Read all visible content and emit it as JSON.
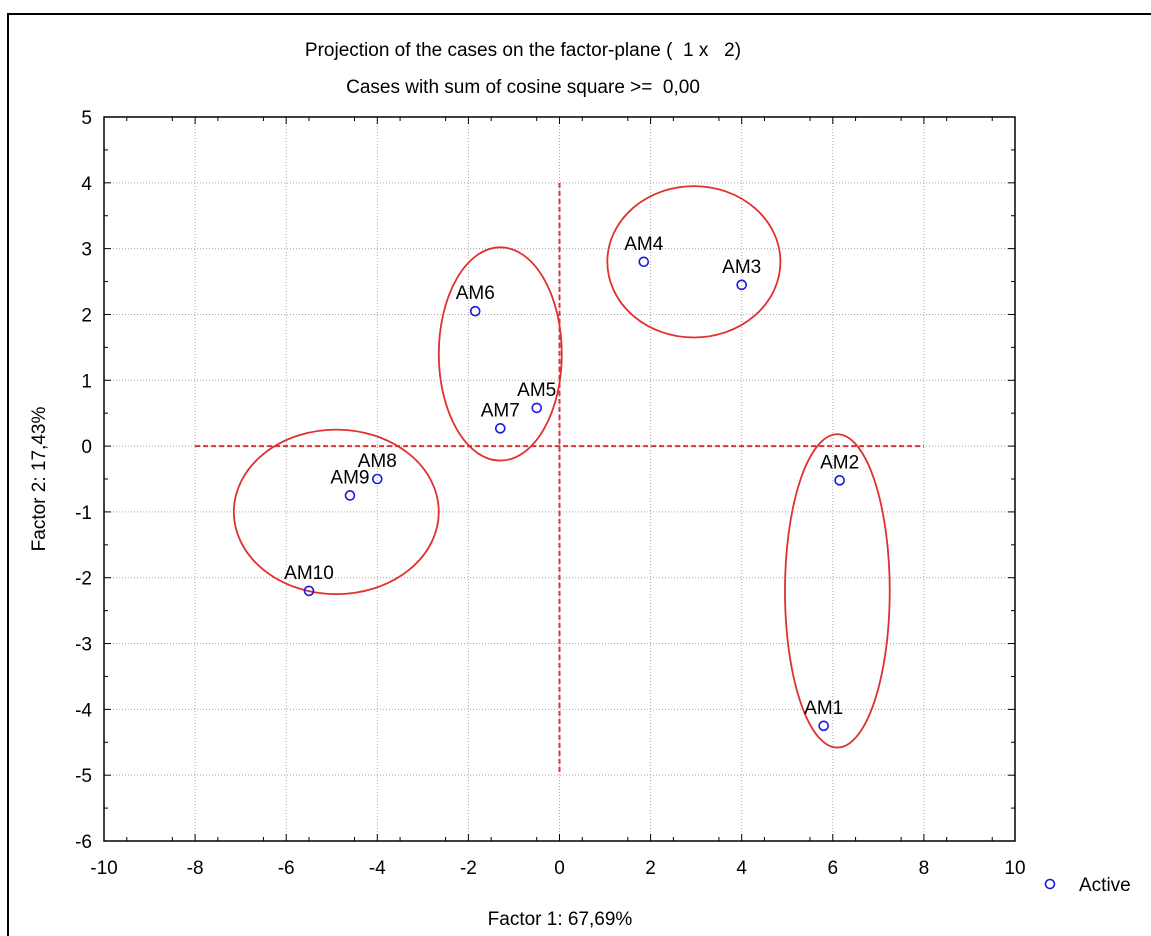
{
  "chart_data": {
    "type": "scatter",
    "title": "Projection of the cases on the factor-plane (  1 x   2)",
    "subtitle": "Cases with sum of cosine square >=  0,00",
    "xlabel": "Factor 1: 67,69%",
    "ylabel": "Factor 2: 17,43%",
    "xlim": [
      -10,
      10
    ],
    "ylim": [
      -6,
      5
    ],
    "xticks": [
      "-10",
      "-8",
      "-6",
      "-4",
      "-2",
      "0",
      "2",
      "4",
      "6",
      "8",
      "10"
    ],
    "yticks": [
      "-6",
      "-5",
      "-4",
      "-3",
      "-2",
      "-1",
      "0",
      "1",
      "2",
      "3",
      "4",
      "5"
    ],
    "grid": true,
    "legend": "right",
    "series": [
      {
        "name": "Active",
        "color": "#1a1adc",
        "points": [
          {
            "label": "AM1",
            "x": 5.8,
            "y": -4.25
          },
          {
            "label": "AM2",
            "x": 6.15,
            "y": -0.52
          },
          {
            "label": "AM3",
            "x": 4.0,
            "y": 2.45
          },
          {
            "label": "AM4",
            "x": 1.85,
            "y": 2.8
          },
          {
            "label": "AM5",
            "x": -0.5,
            "y": 0.58
          },
          {
            "label": "AM6",
            "x": -1.85,
            "y": 2.05
          },
          {
            "label": "AM7",
            "x": -1.3,
            "y": 0.27
          },
          {
            "label": "AM8",
            "x": -4.0,
            "y": -0.5
          },
          {
            "label": "AM9",
            "x": -4.6,
            "y": -0.75
          },
          {
            "label": "AM10",
            "x": -5.5,
            "y": -2.2
          }
        ]
      }
    ],
    "reference_lines": [
      {
        "orientation": "horizontal",
        "value": 0,
        "from": -8,
        "to": 8,
        "color": "#e03030"
      },
      {
        "orientation": "vertical",
        "value": 0,
        "from": -5,
        "to": 4,
        "color": "#e03030"
      }
    ],
    "cluster_ellipses": {
      "color": "#e03030",
      "items": [
        {
          "cx": -4.9,
          "cy": -1.0,
          "rx": 2.25,
          "ry": 1.25
        },
        {
          "cx": -1.3,
          "cy": 1.4,
          "rx": 1.35,
          "ry": 1.62
        },
        {
          "cx": 2.95,
          "cy": 2.8,
          "rx": 1.9,
          "ry": 1.15
        },
        {
          "cx": 6.1,
          "cy": -2.2,
          "rx": 1.15,
          "ry": 2.38
        }
      ]
    }
  }
}
